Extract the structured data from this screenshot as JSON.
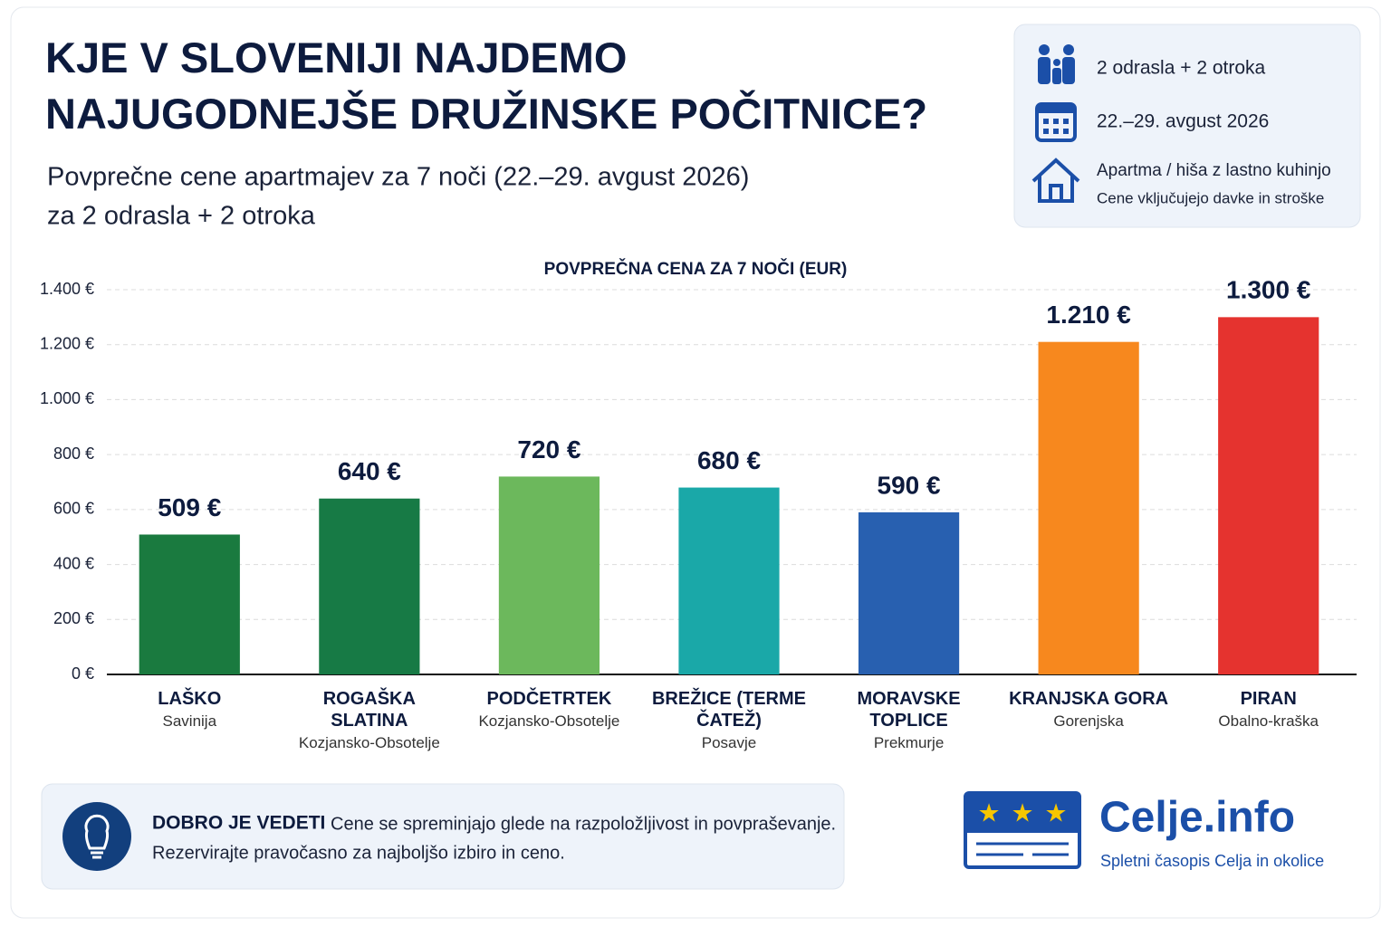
{
  "chart_data": {
    "type": "bar",
    "title": "KJE V SLOVENIJI NAJDEMO NAJUGODNEJŠE DRUŽINSKE POČITNICE?",
    "subtitle_lines": [
      "Povprečne cene apartmajev za 7 noči (22.–29. avgust 2026)",
      "za 2 odrasla + 2 otroka"
    ],
    "y_axis_title": "POVPREČNA CENA ZA 7 NOČI (EUR)",
    "categories": [
      "LAŠKO",
      "ROGAŠKA SLATINA",
      "PODČETRTEK",
      "BREŽICE (TERME ČATEŽ)",
      "MORAVSKE TOPLICE",
      "KRANJSKA GORA",
      "PIRAN"
    ],
    "regions": [
      "Savinija",
      "Kozjansko-Obsotelje",
      "Kozjansko-Obsotelje",
      "Posavje",
      "Prekmurje",
      "Gorenjska",
      "Obalno-kraška"
    ],
    "values": [
      509,
      640,
      720,
      680,
      590,
      1210,
      1300
    ],
    "value_labels": [
      "509 €",
      "640 €",
      "720 €",
      "680 €",
      "590 €",
      "1.210 €",
      "1.300 €"
    ],
    "colors": [
      "#1a7a3f",
      "#177a45",
      "#6cb85c",
      "#1aa8a8",
      "#2860b0",
      "#f7881e",
      "#e5332f"
    ],
    "ylim": [
      0,
      1400
    ],
    "yticks": [
      {
        "value": 0,
        "label": "0 €"
      },
      {
        "value": 200,
        "label": "200 €"
      },
      {
        "value": 400,
        "label": "400 €"
      },
      {
        "value": 600,
        "label": "600 €"
      },
      {
        "value": 800,
        "label": "800 €"
      },
      {
        "value": 1000,
        "label": "1.000 €"
      },
      {
        "value": 1200,
        "label": "1.200 €"
      },
      {
        "value": 1400,
        "label": "1.400 €"
      }
    ],
    "grid": true
  },
  "info_box": {
    "family": "2 odrasla + 2 otroka",
    "dates": "22.–29. avgust 2026",
    "accommodation": "Apartma / hiša z lastno kuhinjo",
    "note": "Cene vključujejo davke in stroške"
  },
  "tip": {
    "heading": "DOBRO JE VEDETI",
    "line1": "Cene se spreminjajo glede na razpoložljivost in povpraševanje.",
    "line2": "Rezervirajte pravočasno za najboljšo izbiro in ceno."
  },
  "logo": {
    "name": "Celje.info",
    "tagline": "Spletni časopis Celja in okolice"
  }
}
